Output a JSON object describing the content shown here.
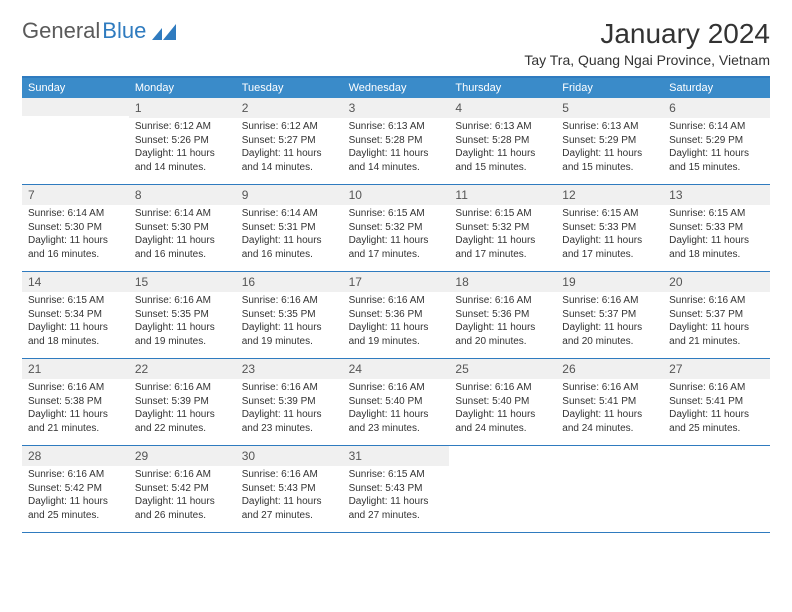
{
  "logo": {
    "text1": "General",
    "text2": "Blue"
  },
  "title": "January 2024",
  "location": "Tay Tra, Quang Ngai Province, Vietnam",
  "weekdays": [
    "Sunday",
    "Monday",
    "Tuesday",
    "Wednesday",
    "Thursday",
    "Friday",
    "Saturday"
  ],
  "colors": {
    "header_bg": "#3a8bc9",
    "border": "#2f7bbf",
    "daynum_bg": "#f0f0f0",
    "text": "#333333"
  },
  "weeks": [
    [
      {
        "empty": true
      },
      {
        "n": "1",
        "sunrise": "6:12 AM",
        "sunset": "5:26 PM",
        "daylight": "11 hours and 14 minutes."
      },
      {
        "n": "2",
        "sunrise": "6:12 AM",
        "sunset": "5:27 PM",
        "daylight": "11 hours and 14 minutes."
      },
      {
        "n": "3",
        "sunrise": "6:13 AM",
        "sunset": "5:28 PM",
        "daylight": "11 hours and 14 minutes."
      },
      {
        "n": "4",
        "sunrise": "6:13 AM",
        "sunset": "5:28 PM",
        "daylight": "11 hours and 15 minutes."
      },
      {
        "n": "5",
        "sunrise": "6:13 AM",
        "sunset": "5:29 PM",
        "daylight": "11 hours and 15 minutes."
      },
      {
        "n": "6",
        "sunrise": "6:14 AM",
        "sunset": "5:29 PM",
        "daylight": "11 hours and 15 minutes."
      }
    ],
    [
      {
        "n": "7",
        "sunrise": "6:14 AM",
        "sunset": "5:30 PM",
        "daylight": "11 hours and 16 minutes."
      },
      {
        "n": "8",
        "sunrise": "6:14 AM",
        "sunset": "5:30 PM",
        "daylight": "11 hours and 16 minutes."
      },
      {
        "n": "9",
        "sunrise": "6:14 AM",
        "sunset": "5:31 PM",
        "daylight": "11 hours and 16 minutes."
      },
      {
        "n": "10",
        "sunrise": "6:15 AM",
        "sunset": "5:32 PM",
        "daylight": "11 hours and 17 minutes."
      },
      {
        "n": "11",
        "sunrise": "6:15 AM",
        "sunset": "5:32 PM",
        "daylight": "11 hours and 17 minutes."
      },
      {
        "n": "12",
        "sunrise": "6:15 AM",
        "sunset": "5:33 PM",
        "daylight": "11 hours and 17 minutes."
      },
      {
        "n": "13",
        "sunrise": "6:15 AM",
        "sunset": "5:33 PM",
        "daylight": "11 hours and 18 minutes."
      }
    ],
    [
      {
        "n": "14",
        "sunrise": "6:15 AM",
        "sunset": "5:34 PM",
        "daylight": "11 hours and 18 minutes."
      },
      {
        "n": "15",
        "sunrise": "6:16 AM",
        "sunset": "5:35 PM",
        "daylight": "11 hours and 19 minutes."
      },
      {
        "n": "16",
        "sunrise": "6:16 AM",
        "sunset": "5:35 PM",
        "daylight": "11 hours and 19 minutes."
      },
      {
        "n": "17",
        "sunrise": "6:16 AM",
        "sunset": "5:36 PM",
        "daylight": "11 hours and 19 minutes."
      },
      {
        "n": "18",
        "sunrise": "6:16 AM",
        "sunset": "5:36 PM",
        "daylight": "11 hours and 20 minutes."
      },
      {
        "n": "19",
        "sunrise": "6:16 AM",
        "sunset": "5:37 PM",
        "daylight": "11 hours and 20 minutes."
      },
      {
        "n": "20",
        "sunrise": "6:16 AM",
        "sunset": "5:37 PM",
        "daylight": "11 hours and 21 minutes."
      }
    ],
    [
      {
        "n": "21",
        "sunrise": "6:16 AM",
        "sunset": "5:38 PM",
        "daylight": "11 hours and 21 minutes."
      },
      {
        "n": "22",
        "sunrise": "6:16 AM",
        "sunset": "5:39 PM",
        "daylight": "11 hours and 22 minutes."
      },
      {
        "n": "23",
        "sunrise": "6:16 AM",
        "sunset": "5:39 PM",
        "daylight": "11 hours and 23 minutes."
      },
      {
        "n": "24",
        "sunrise": "6:16 AM",
        "sunset": "5:40 PM",
        "daylight": "11 hours and 23 minutes."
      },
      {
        "n": "25",
        "sunrise": "6:16 AM",
        "sunset": "5:40 PM",
        "daylight": "11 hours and 24 minutes."
      },
      {
        "n": "26",
        "sunrise": "6:16 AM",
        "sunset": "5:41 PM",
        "daylight": "11 hours and 24 minutes."
      },
      {
        "n": "27",
        "sunrise": "6:16 AM",
        "sunset": "5:41 PM",
        "daylight": "11 hours and 25 minutes."
      }
    ],
    [
      {
        "n": "28",
        "sunrise": "6:16 AM",
        "sunset": "5:42 PM",
        "daylight": "11 hours and 25 minutes."
      },
      {
        "n": "29",
        "sunrise": "6:16 AM",
        "sunset": "5:42 PM",
        "daylight": "11 hours and 26 minutes."
      },
      {
        "n": "30",
        "sunrise": "6:16 AM",
        "sunset": "5:43 PM",
        "daylight": "11 hours and 27 minutes."
      },
      {
        "n": "31",
        "sunrise": "6:15 AM",
        "sunset": "5:43 PM",
        "daylight": "11 hours and 27 minutes."
      },
      {
        "empty": true
      },
      {
        "empty": true
      },
      {
        "empty": true
      }
    ]
  ]
}
